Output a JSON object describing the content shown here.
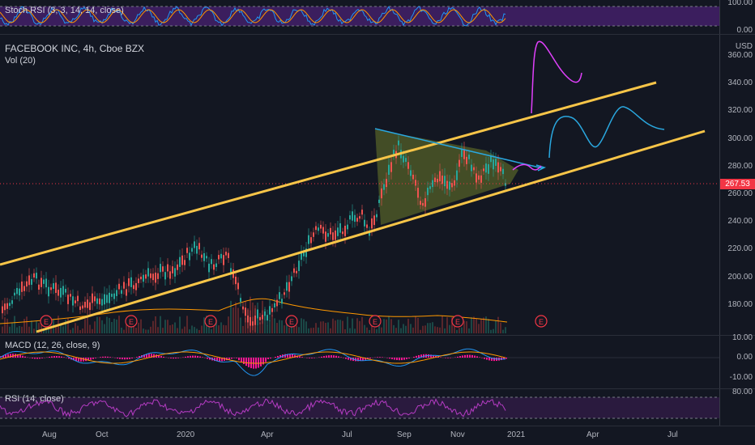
{
  "stoch_rsi": {
    "label": "Stoch RSI (3, 3, 14, 14, close)",
    "ticks": [
      "100.00",
      "0.00"
    ]
  },
  "main": {
    "title": "FACEBOOK INC, 4h, Cboe BZX",
    "volume_label": "Vol (20)",
    "currency": "USD",
    "price_ticks": [
      "360.00",
      "340.00",
      "320.00",
      "300.00",
      "280.00",
      "260.00",
      "240.00",
      "220.00",
      "200.00",
      "180.00"
    ],
    "last_price": "267.53",
    "earnings_marker": "E"
  },
  "macd": {
    "label": "MACD (12, 26, close, 9)",
    "ticks": [
      "10.00",
      "0.00",
      "-10.00"
    ]
  },
  "rsi": {
    "label": "RSI (14, close)",
    "ticks": [
      "80.00"
    ]
  },
  "time_axis": [
    "Aug",
    "Oct",
    "2020",
    "Apr",
    "Jul",
    "Sep",
    "Nov",
    "2021",
    "Apr",
    "Jul"
  ],
  "colors": {
    "bg": "#131722",
    "up": "#26a69a",
    "down": "#ef5350",
    "channel": "#f7c548",
    "triangle": "#6b7a2a",
    "stoch_band": "#3b1e5e",
    "rsi": "#b63cc4",
    "macd_line": "#2196f3",
    "signal_line": "#ff9800",
    "hist": "#ff1493",
    "projection_blue": "#2aa8e0",
    "projection_pink": "#e040fb"
  }
}
